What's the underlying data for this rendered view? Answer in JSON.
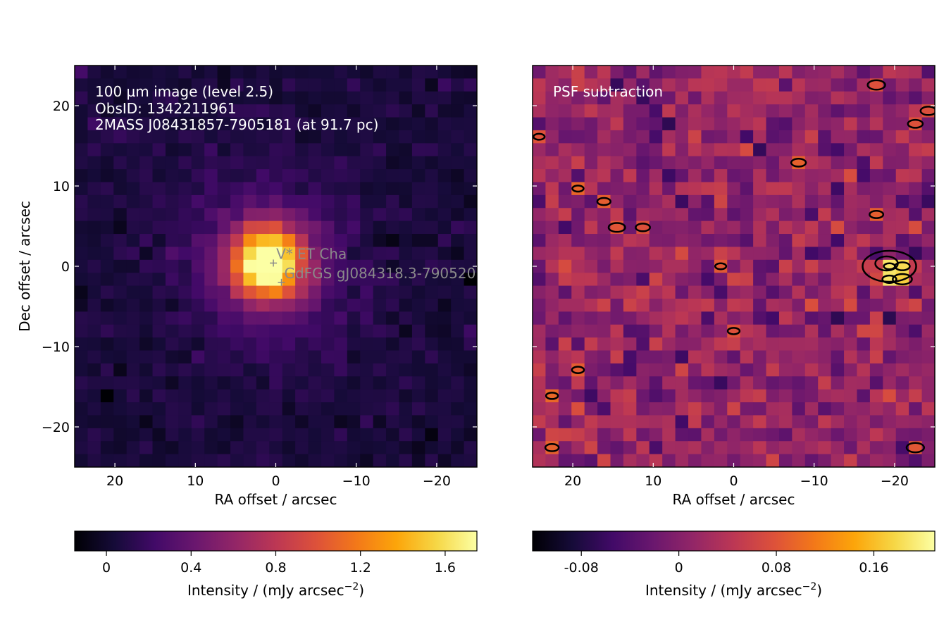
{
  "chart_data": [
    {
      "type": "heatmap",
      "panel": "left",
      "annotations": [
        "100 µm image (level 2.5)",
        "ObsID: 1342211961",
        "2MASS J08431857-7905181 (at 91.7 pc)"
      ],
      "xlabel": "RA offset / arcsec",
      "ylabel": "Dec offset / arcsec",
      "xlim": [
        25,
        -25
      ],
      "ylim": [
        -25,
        25
      ],
      "xticks": [
        20,
        10,
        0,
        -10,
        -20
      ],
      "xtick_labels": [
        "20",
        "10",
        "0",
        "−10",
        "−20"
      ],
      "yticks": [
        20,
        10,
        0,
        -10,
        -20
      ],
      "ytick_labels": [
        "20",
        "10",
        "0",
        "−10",
        "−20"
      ],
      "sources": [
        {
          "name": "V* ET Cha",
          "x": 0.3,
          "y": 0.4
        },
        {
          "name": "GdFGS gJ084318.3-790520",
          "x": -0.7,
          "y": -2.0
        }
      ],
      "peak": {
        "x": 1.0,
        "y": 0.5,
        "value": 1.72
      },
      "colorbar": {
        "colormap": "inferno",
        "vmin": -0.15,
        "vmax": 1.75,
        "ticks": [
          0,
          0.4,
          0.8,
          1.2,
          1.6
        ],
        "tick_labels": [
          "0",
          "0.4",
          "0.8",
          "1.2",
          "1.6"
        ],
        "label": "Intensity / (mJy arcsec",
        "label_sup": "−2",
        "label_end": ")"
      }
    },
    {
      "type": "heatmap",
      "panel": "right",
      "annotations": [
        "PSF subtraction"
      ],
      "xlabel": "RA offset / arcsec",
      "xlim": [
        25,
        -25
      ],
      "ylim": [
        -25,
        25
      ],
      "xticks": [
        20,
        10,
        0,
        -10,
        -20
      ],
      "xtick_labels": [
        "20",
        "10",
        "0",
        "−10",
        "−20"
      ],
      "yticks": [
        20,
        10,
        0,
        -10,
        -20
      ],
      "ytick_labels": [],
      "contours": {
        "positive_color": "#000000",
        "negative_color": "#e6e6e6"
      },
      "colorbar": {
        "colormap": "inferno",
        "vmin": -0.12,
        "vmax": 0.21,
        "ticks": [
          -0.08,
          0,
          0.08,
          0.16
        ],
        "tick_labels": [
          "-0.08",
          "0",
          "0.08",
          "0.16"
        ],
        "label": "Intensity / (mJy arcsec",
        "label_sup": "−2",
        "label_end": ")"
      }
    }
  ]
}
